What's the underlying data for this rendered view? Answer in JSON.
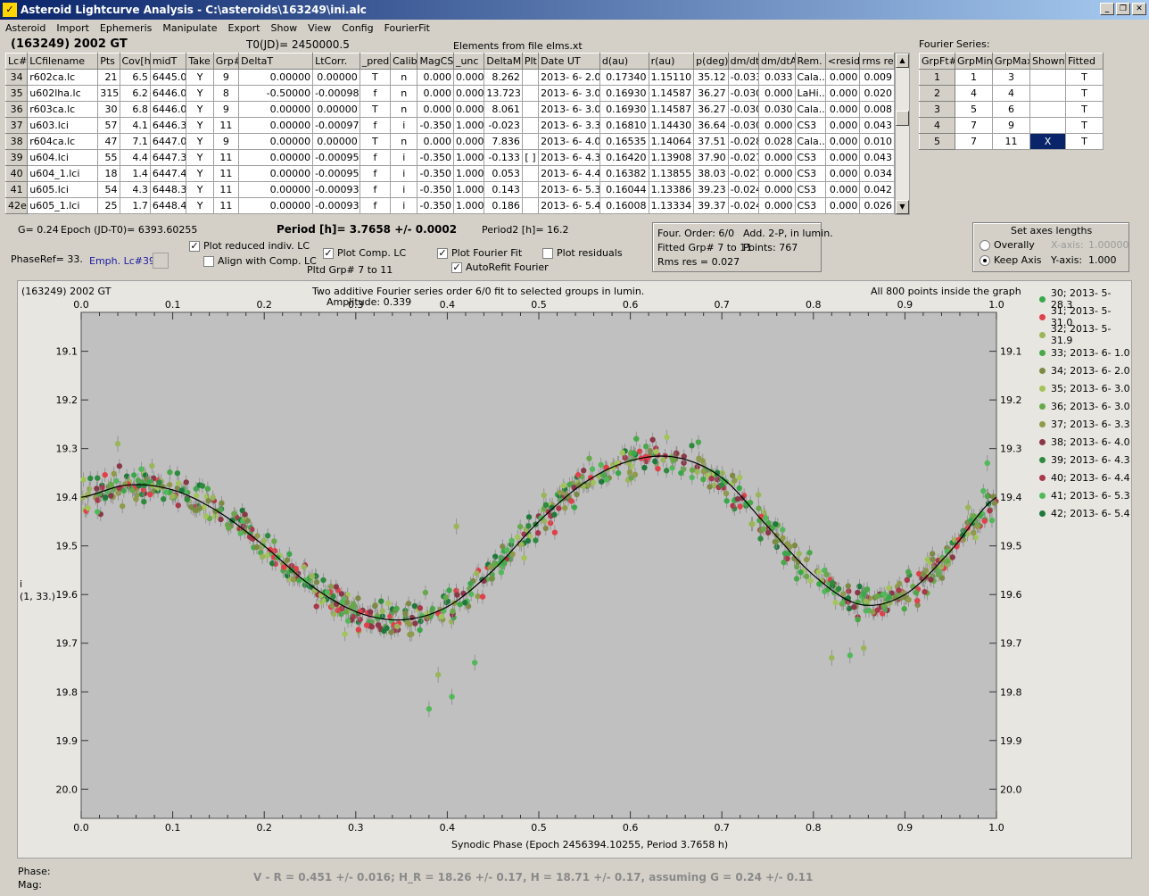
{
  "window": {
    "title": "Asteroid Lightcurve Analysis - C:\\asteroids\\163249\\ini.alc",
    "minimize": "_",
    "restore": "❐",
    "close": "✕"
  },
  "menu": [
    "Asteroid",
    "Import",
    "Ephemeris",
    "Manipulate",
    "Export",
    "Show",
    "View",
    "Config",
    "FourierFit"
  ],
  "header": {
    "object": "(163249) 2002 GT",
    "t0": "T0(JD)= 2450000.5",
    "elements": "Elements from file elms.xt",
    "fourier_series_label": "Fourier Series:"
  },
  "lc_table": {
    "columns": [
      "Lc#",
      "LCfilename",
      "Pts",
      "Cov[h]",
      "midT",
      "Take",
      "Grp#",
      "DeltaT",
      "LtCorr.",
      "_pred.",
      "Calib.",
      "MagCS",
      "_unc",
      "DeltaM",
      "Plt",
      "Date UT",
      "d(au)",
      "r(au)",
      "p(deg)",
      "dm/dt",
      "dm/dtA",
      "Rem.",
      "<resid>",
      "rms res"
    ],
    "rows": [
      [
        "34",
        "r602ca.lc",
        "21",
        "6.5",
        "6445.0",
        "Y",
        "9",
        "0.00000",
        "0.00000",
        "T",
        "n",
        "0.000",
        "0.000",
        "8.262",
        "",
        "2013- 6- 2.0",
        "0.17340",
        "1.15110",
        "35.12",
        "-0.033",
        "0.033",
        "Cala...",
        "0.000",
        "0.009"
      ],
      [
        "35",
        "u602lha.lc",
        "315",
        "6.2",
        "6446.0",
        "Y",
        "8",
        "-0.50000",
        "-0.00098",
        "f",
        "n",
        "0.000",
        "0.000",
        "13.723",
        "",
        "2013- 6- 3.0",
        "0.16930",
        "1.14587",
        "36.27",
        "-0.030",
        "0.000",
        "LaHi...",
        "0.000",
        "0.020"
      ],
      [
        "36",
        "r603ca.lc",
        "30",
        "6.8",
        "6446.0",
        "Y",
        "9",
        "0.00000",
        "0.00000",
        "T",
        "n",
        "0.000",
        "0.000",
        "8.061",
        "",
        "2013- 6- 3.0",
        "0.16930",
        "1.14587",
        "36.27",
        "-0.030",
        "0.030",
        "Cala...",
        "0.000",
        "0.008"
      ],
      [
        "37",
        "u603.lci",
        "57",
        "4.1",
        "6446.3",
        "Y",
        "11",
        "0.00000",
        "-0.00097",
        "f",
        "i",
        "-0.350",
        "1.000",
        "-0.023",
        "",
        "2013- 6- 3.3",
        "0.16810",
        "1.14430",
        "36.64",
        "-0.030",
        "0.000",
        "CS3",
        "0.000",
        "0.043"
      ],
      [
        "38",
        "r604ca.lc",
        "47",
        "7.1",
        "6447.0",
        "Y",
        "9",
        "0.00000",
        "0.00000",
        "T",
        "n",
        "0.000",
        "0.000",
        "7.836",
        "",
        "2013- 6- 4.0",
        "0.16535",
        "1.14064",
        "37.51",
        "-0.028",
        "0.028",
        "Cala...",
        "0.000",
        "0.010"
      ],
      [
        "39",
        "u604.lci",
        "55",
        "4.4",
        "6447.3",
        "Y",
        "11",
        "0.00000",
        "-0.00095",
        "f",
        "i",
        "-0.350",
        "1.000",
        "-0.133",
        "[ ]",
        "2013- 6- 4.3",
        "0.16420",
        "1.13908",
        "37.90",
        "-0.027",
        "0.000",
        "CS3",
        "0.000",
        "0.043"
      ],
      [
        "40",
        "u604_1.lci",
        "18",
        "1.4",
        "6447.4",
        "Y",
        "11",
        "0.00000",
        "-0.00095",
        "f",
        "i",
        "-0.350",
        "1.000",
        "0.053",
        "",
        "2013- 6- 4.4",
        "0.16382",
        "1.13855",
        "38.03",
        "-0.027",
        "0.000",
        "CS3",
        "0.000",
        "0.034"
      ],
      [
        "41",
        "u605.lci",
        "54",
        "4.3",
        "6448.3",
        "Y",
        "11",
        "0.00000",
        "-0.00093",
        "f",
        "i",
        "-0.350",
        "1.000",
        "0.143",
        "",
        "2013- 6- 5.3",
        "0.16044",
        "1.13386",
        "39.23",
        "-0.024",
        "0.000",
        "CS3",
        "0.000",
        "0.042"
      ],
      [
        "42e",
        "u605_1.lci",
        "25",
        "1.7",
        "6448.4",
        "Y",
        "11",
        "0.00000",
        "-0.00093",
        "f",
        "i",
        "-0.350",
        "1.000",
        "0.186",
        "",
        "2013- 6- 5.4",
        "0.16008",
        "1.13334",
        "39.37",
        "-0.024",
        "0.000",
        "CS3",
        "0.000",
        "0.026"
      ]
    ]
  },
  "fourier_table": {
    "columns": [
      "GrpFt#",
      "GrpMin",
      "GrpMax",
      "Shown",
      "Fitted"
    ],
    "rows": [
      [
        "1",
        "1",
        "3",
        "",
        "T"
      ],
      [
        "2",
        "4",
        "4",
        "",
        "T"
      ],
      [
        "3",
        "5",
        "6",
        "",
        "T"
      ],
      [
        "4",
        "7",
        "9",
        "",
        "T"
      ],
      [
        "5",
        "7",
        "11",
        "X",
        "T"
      ]
    ]
  },
  "info": {
    "g": "G= 0.24",
    "epoch": "Epoch (JD-T0)= 6393.60255",
    "period": "Period [h]= 3.7658 +/- 0.0002",
    "period2": "Period2 [h]= 16.2",
    "phase_ref": "PhaseRef= 33.",
    "emph": "Emph. Lc#39:",
    "plot_reduced": "Plot reduced indiv. LC",
    "align": "Align with Comp. LC",
    "plot_comp": "Plot Comp. LC",
    "pltd_grp": "Pltd Grp#  7  to   11",
    "plot_fourier": "Plot Fourier Fit",
    "autorefit": "AutoRefit Fourier",
    "plot_residuals": "Plot residuals",
    "four_order": "Four. Order:  6/0",
    "add": "Add. 2-P, in lumin.",
    "fitted": "Fitted Grp# 7 to 11",
    "points": "Points: 767",
    "rms": "Rms res     = 0.027",
    "axes_title": "Set axes lengths",
    "overally": "Overally",
    "keep_axis": "Keep Axis",
    "xaxis_label": "X-axis:",
    "xaxis_val": "1.00000",
    "yaxis_label": "Y-axis:",
    "yaxis_val": "1.000"
  },
  "plot": {
    "object": "(163249) 2002 GT",
    "title": "Two additive Fourier series order 6/0 fit to selected groups in lumin.",
    "amplitude": "Amplitude: 0.339",
    "inside": "All 800 points inside the graph",
    "ylabel_i": "i",
    "ylabel_pos": "(1, 33.)",
    "xlabel": "Synodic Phase (Epoch 2456394.10255, Period 3.7658 h)",
    "bg": "#c0c0c0"
  },
  "chart_data": {
    "type": "scatter",
    "xlim": [
      0.0,
      1.0
    ],
    "ylim": [
      20.06,
      19.02
    ],
    "y_inverted": true,
    "x_ticks": [
      "0.0",
      "0.1",
      "0.2",
      "0.3",
      "0.4",
      "0.5",
      "0.6",
      "0.7",
      "0.8",
      "0.9",
      "1.0"
    ],
    "y_ticks": [
      "19.1",
      "19.2",
      "19.3",
      "19.4",
      "19.5",
      "19.6",
      "19.7",
      "19.8",
      "19.9",
      "20.0"
    ],
    "fit_curve": [
      [
        0.0,
        19.4
      ],
      [
        0.05,
        19.375
      ],
      [
        0.1,
        19.385
      ],
      [
        0.15,
        19.43
      ],
      [
        0.2,
        19.5
      ],
      [
        0.25,
        19.58
      ],
      [
        0.3,
        19.635
      ],
      [
        0.35,
        19.652
      ],
      [
        0.4,
        19.625
      ],
      [
        0.45,
        19.55
      ],
      [
        0.5,
        19.45
      ],
      [
        0.55,
        19.37
      ],
      [
        0.6,
        19.325
      ],
      [
        0.65,
        19.318
      ],
      [
        0.7,
        19.36
      ],
      [
        0.75,
        19.46
      ],
      [
        0.8,
        19.56
      ],
      [
        0.85,
        19.62
      ],
      [
        0.9,
        19.6
      ],
      [
        0.95,
        19.51
      ],
      [
        1.0,
        19.4
      ]
    ],
    "outliers": [
      [
        0.04,
        19.29
      ],
      [
        0.38,
        19.835
      ],
      [
        0.39,
        19.765
      ],
      [
        0.405,
        19.81
      ],
      [
        0.41,
        19.46
      ],
      [
        0.43,
        19.74
      ],
      [
        0.82,
        19.73
      ],
      [
        0.84,
        19.725
      ],
      [
        0.855,
        19.71
      ],
      [
        0.99,
        19.33
      ]
    ],
    "scatter_sigma": 0.025,
    "legend": [
      {
        "label": "30; 2013- 5-28.3",
        "color": "#3aa84a"
      },
      {
        "label": "31; 2013- 5-31.0",
        "color": "#e0404a"
      },
      {
        "label": "32; 2013- 5-31.9",
        "color": "#9ab55a"
      },
      {
        "label": "33; 2013- 6- 1.0",
        "color": "#4aa848"
      },
      {
        "label": "34; 2013- 6- 2.0",
        "color": "#7d8a45"
      },
      {
        "label": "35; 2013- 6- 3.0",
        "color": "#a2c45a"
      },
      {
        "label": "36; 2013- 6- 3.0",
        "color": "#68a84a"
      },
      {
        "label": "37; 2013- 6- 3.3",
        "color": "#8f9a4a"
      },
      {
        "label": "38; 2013- 6- 4.0",
        "color": "#8a3848"
      },
      {
        "label": "39; 2013- 6- 4.3",
        "color": "#2e8a3e"
      },
      {
        "label": "40; 2013- 6- 4.4",
        "color": "#a8384a"
      },
      {
        "label": "41; 2013- 6- 5.3",
        "color": "#52b85a"
      },
      {
        "label": "42; 2013- 6- 5.4",
        "color": "#1e7a3a"
      }
    ]
  },
  "footer": {
    "phase": "Phase:",
    "mag": "Mag:",
    "summary": "V - R = 0.451 +/- 0.016; H_R = 18.26 +/- 0.17, H = 18.71 +/- 0.17, assuming G = 0.24 +/- 0.11"
  }
}
